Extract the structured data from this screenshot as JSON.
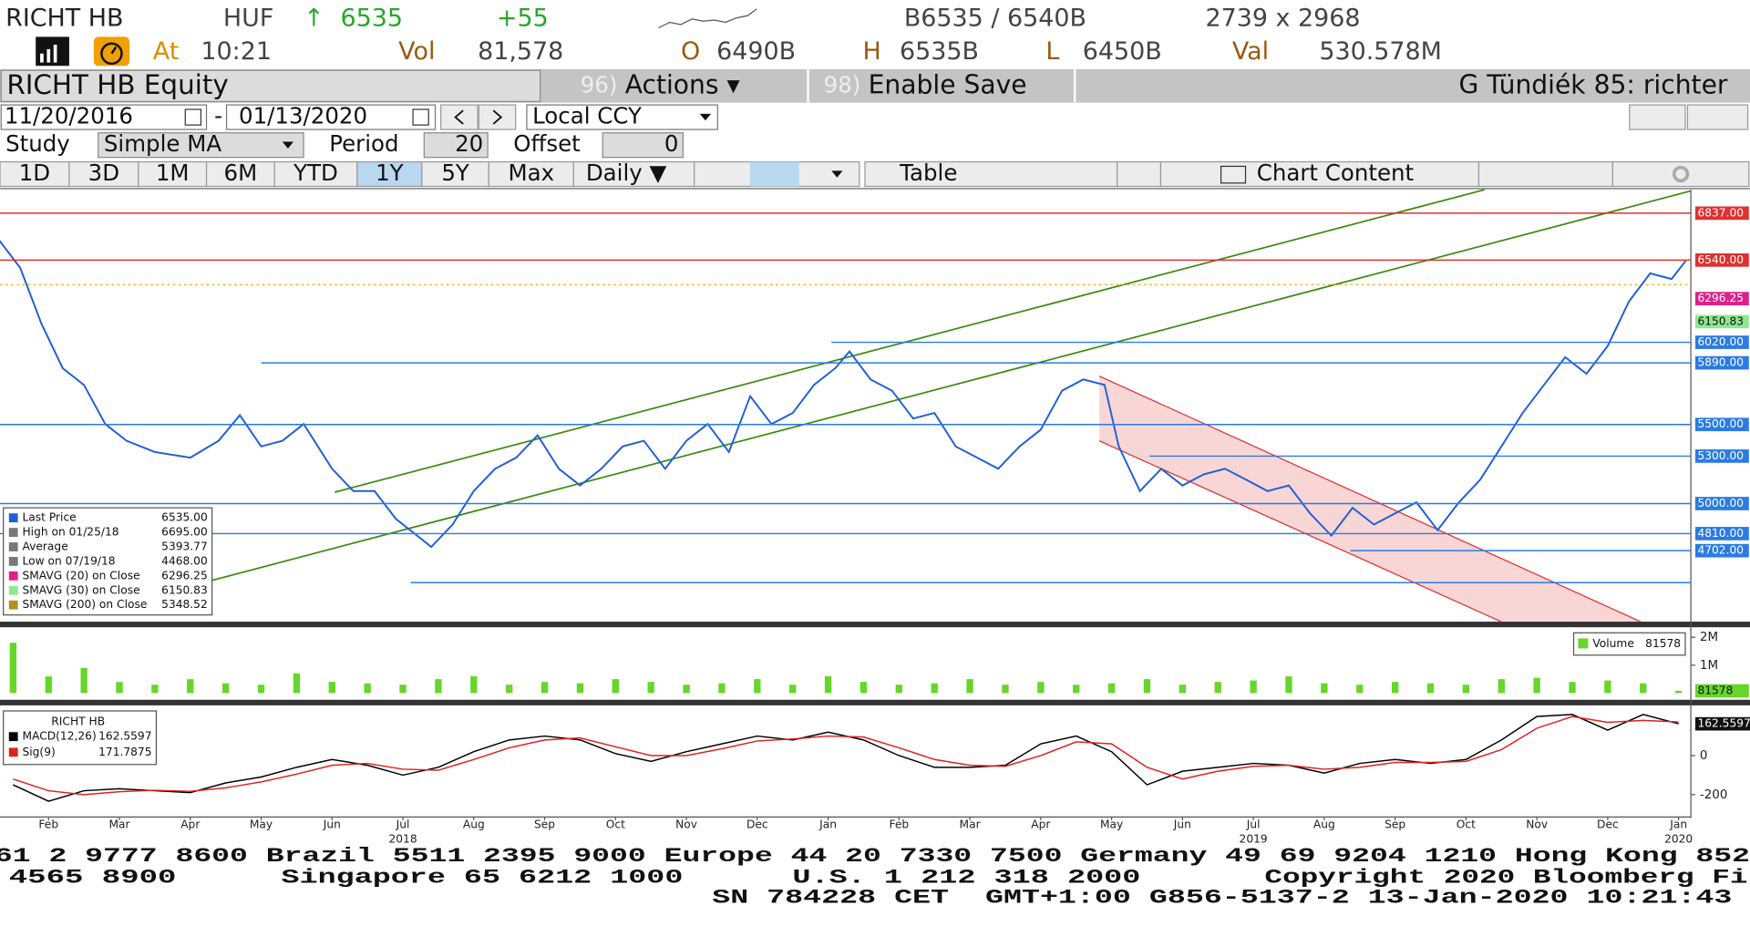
{
  "header": {
    "ticker": "RICHT HB",
    "currency": "HUF",
    "arrow": "↑",
    "last": "6535",
    "change": "+55",
    "bid_ask": "B6535 / 6540B",
    "size": "2739 x 2968",
    "at_label": "At",
    "time": "10:21",
    "vol_label": "Vol",
    "vol": "81,578",
    "open_label": "O",
    "open": "6490B",
    "high_label": "H",
    "high": "6535B",
    "low_label": "L",
    "low": "6450B",
    "val_label": "Val",
    "val": "530.578M"
  },
  "toolbar": {
    "security": "RICHT HB Equity",
    "actions_num": "96)",
    "actions": "Actions ▾",
    "save_num": "98)",
    "save": "Enable Save",
    "user": "G Tündiék 85: richter",
    "start_date": "11/20/2016",
    "dash": "-",
    "end_date": "01/13/2020",
    "currency_mode": "Local CCY",
    "study_label": "Study",
    "study": "Simple MA",
    "period_label": "Period",
    "period": "20",
    "offset_label": "Offset",
    "offset": "0",
    "ranges": [
      "1D",
      "3D",
      "1M",
      "6M",
      "YTD",
      "1Y",
      "5Y",
      "Max"
    ],
    "active_range": 5,
    "interval": "Daily ▼",
    "table": "Table",
    "chart_content": "Chart Content"
  },
  "chart_data": [
    {
      "type": "line",
      "xlim": [
        0.315,
        24.173
      ],
      "ylim": [
        4253,
        6985
      ],
      "x": [
        0.3,
        0.6,
        0.9,
        1.2,
        1.5,
        1.8,
        2.1,
        2.5,
        3.0,
        3.4,
        3.7,
        4.0,
        4.3,
        4.6,
        5.0,
        5.3,
        5.6,
        5.9,
        6.2,
        6.4,
        6.7,
        7.0,
        7.3,
        7.6,
        7.9,
        8.2,
        8.5,
        8.8,
        9.1,
        9.4,
        9.7,
        10.0,
        10.3,
        10.6,
        10.9,
        11.2,
        11.5,
        11.8,
        12.1,
        12.3,
        12.6,
        12.9,
        13.2,
        13.5,
        13.8,
        14.1,
        14.4,
        14.7,
        15.0,
        15.3,
        15.6,
        15.9,
        16.1,
        16.4,
        16.7,
        17.0,
        17.3,
        17.6,
        17.9,
        18.2,
        18.5,
        18.8,
        19.1,
        19.4,
        19.7,
        20.0,
        20.3,
        20.6,
        20.9,
        21.2,
        21.5,
        21.8,
        22.1,
        22.4,
        22.7,
        23.0,
        23.3,
        23.6,
        23.9,
        24.1
      ],
      "series": [
        {
          "color": "#1f5fd6",
          "values": [
            6668,
            6491,
            6138,
            5856,
            5750,
            5503,
            5397,
            5326,
            5291,
            5397,
            5559,
            5361,
            5397,
            5503,
            5220,
            5079,
            5079,
            4903,
            4797,
            4726,
            4867,
            5079,
            5220,
            5291,
            5432,
            5220,
            5114,
            5220,
            5361,
            5397,
            5220,
            5397,
            5503,
            5326,
            5679,
            5503,
            5573,
            5750,
            5856,
            5962,
            5785,
            5714,
            5538,
            5573,
            5361,
            5291,
            5220,
            5361,
            5467,
            5714,
            5785,
            5750,
            5361,
            5079,
            5220,
            5114,
            5185,
            5220,
            5150,
            5079,
            5114,
            4938,
            4797,
            4973,
            4867,
            4938,
            5008,
            4832,
            5008,
            5150,
            5361,
            5573,
            5750,
            5926,
            5821,
            5997,
            6279,
            6456,
            6420,
            6535
          ]
        }
      ],
      "levels": [
        {
          "value": 6837,
          "label": "6837.00",
          "color": "#e03030"
        },
        {
          "value": 6540,
          "label": "6540.00",
          "color": "#e03030"
        },
        {
          "value": 6296.25,
          "label": "6296.25",
          "color": "#e0208a"
        },
        {
          "value": 6150.83,
          "label": "6150.83",
          "color": "#8fe88f"
        },
        {
          "value": 6020,
          "label": "6020.00",
          "color": "#2a7be4"
        },
        {
          "value": 5890,
          "label": "5890.00",
          "color": "#2a7be4"
        },
        {
          "value": 5500,
          "label": "5500.00",
          "color": "#2a7be4"
        },
        {
          "value": 5300,
          "label": "5300.00",
          "color": "#2a7be4"
        },
        {
          "value": 5000,
          "label": "5000.00",
          "color": "#2a7be4"
        },
        {
          "value": 4810,
          "label": "4810.00",
          "color": "#2a7be4"
        },
        {
          "value": 4702,
          "label": "4702.00",
          "color": "#2a7be4"
        },
        {
          "value": 4500,
          "color": "#2a7be4"
        }
      ],
      "legend": [
        {
          "label": "Last Price",
          "value": "6535.00",
          "color": "#1f5fd6"
        },
        {
          "label": "High on 01/25/18",
          "value": "6695.00",
          "color": "#777777"
        },
        {
          "label": "Average",
          "value": "5393.77",
          "color": "#777777"
        },
        {
          "label": "Low on 07/19/18",
          "value": "4468.00",
          "color": "#777777"
        },
        {
          "label": "SMAVG (20)  on Close",
          "value": "6296.25",
          "color": "#e0208a"
        },
        {
          "label": "SMAVG (30)  on Close",
          "value": "6150.83",
          "color": "#8fe88f"
        },
        {
          "label": "SMAVG (200)  on Close",
          "value": "5348.52",
          "color": "#b09020"
        }
      ]
    },
    {
      "type": "bar",
      "xlim": [
        0.315,
        24.173
      ],
      "ylim": [
        0,
        2280000
      ],
      "yticks": [
        {
          "value": 2000000,
          "label": "2M"
        },
        {
          "value": 1000000,
          "label": "1M"
        }
      ],
      "x": [
        0.5,
        1,
        1.5,
        2,
        2.5,
        3,
        3.5,
        4,
        4.5,
        5,
        5.5,
        6,
        6.5,
        7,
        7.5,
        8,
        8.5,
        9,
        9.5,
        10,
        10.5,
        11,
        11.5,
        12,
        12.5,
        13,
        13.5,
        14,
        14.5,
        15,
        15.5,
        16,
        16.5,
        17,
        17.5,
        18,
        18.5,
        19,
        19.5,
        20,
        20.5,
        21,
        21.5,
        22,
        22.5,
        23,
        23.5,
        24
      ],
      "series": [
        {
          "name": "Volume",
          "color": "#66d62a",
          "last_value_label": "81578",
          "values": [
            1800000,
            600000,
            900000,
            400000,
            300000,
            500000,
            350000,
            300000,
            700000,
            400000,
            350000,
            300000,
            500000,
            600000,
            300000,
            400000,
            350000,
            500000,
            400000,
            300000,
            350000,
            500000,
            300000,
            600000,
            400000,
            300000,
            350000,
            500000,
            300000,
            400000,
            300000,
            350000,
            500000,
            300000,
            400000,
            450000,
            600000,
            350000,
            300000,
            400000,
            350000,
            300000,
            500000,
            550000,
            400000,
            450000,
            350000,
            81578
          ]
        }
      ]
    },
    {
      "type": "line",
      "title": "RICHT HB",
      "xlim": [
        0.315,
        24.173
      ],
      "ylim": [
        -303,
        240
      ],
      "yticks": [
        0,
        -200
      ],
      "x": [
        0.5,
        1,
        1.5,
        2,
        2.5,
        3,
        3.5,
        4,
        4.5,
        5,
        5.5,
        6,
        6.5,
        7,
        7.5,
        8,
        8.5,
        9,
        9.5,
        10,
        10.5,
        11,
        11.5,
        12,
        12.5,
        13,
        13.5,
        14,
        14.5,
        15,
        15.5,
        16,
        16.5,
        17,
        17.5,
        18,
        18.5,
        19,
        19.5,
        20,
        20.5,
        21,
        21.5,
        22,
        22.5,
        23,
        23.5,
        24
      ],
      "series": [
        {
          "name": "MACD(12,26)",
          "color": "#000000",
          "last_value_label": "162.5597",
          "values": [
            -150,
            -234,
            -180,
            -170,
            -180,
            -190,
            -140,
            -110,
            -60,
            -20,
            -50,
            -100,
            -60,
            20,
            80,
            100,
            80,
            10,
            -30,
            20,
            60,
            100,
            80,
            120,
            80,
            0,
            -60,
            -60,
            -50,
            60,
            100,
            20,
            -150,
            -80,
            -60,
            -40,
            -50,
            -90,
            -40,
            -20,
            -40,
            -20,
            80,
            200,
            210,
            130,
            210,
            162.5597
          ]
        },
        {
          "name": "Sig(9)",
          "color": "#e02020",
          "last_value_label": "171.7875",
          "values": [
            -120,
            -180,
            -200,
            -185,
            -178,
            -183,
            -165,
            -135,
            -95,
            -50,
            -40,
            -70,
            -75,
            -20,
            40,
            80,
            90,
            45,
            0,
            0,
            35,
            75,
            85,
            100,
            95,
            40,
            -20,
            -50,
            -55,
            0,
            70,
            60,
            -60,
            -120,
            -80,
            -55,
            -50,
            -70,
            -60,
            -35,
            -35,
            -30,
            30,
            140,
            200,
            170,
            180,
            171.7875
          ]
        }
      ],
      "xticks": [
        {
          "value": 1,
          "label": "Feb"
        },
        {
          "value": 2,
          "label": "Mar"
        },
        {
          "value": 3,
          "label": "Apr"
        },
        {
          "value": 4,
          "label": "May"
        },
        {
          "value": 5,
          "label": "Jun"
        },
        {
          "value": 6,
          "label": "Jul"
        },
        {
          "value": 7,
          "label": "Aug"
        },
        {
          "value": 8,
          "label": "Sep"
        },
        {
          "value": 9,
          "label": "Oct"
        },
        {
          "value": 10,
          "label": "Nov"
        },
        {
          "value": 11,
          "label": "Dec"
        },
        {
          "value": 12,
          "label": "Jan"
        },
        {
          "value": 13,
          "label": "Feb"
        },
        {
          "value": 14,
          "label": "Mar"
        },
        {
          "value": 15,
          "label": "Apr"
        },
        {
          "value": 16,
          "label": "May"
        },
        {
          "value": 17,
          "label": "Jun"
        },
        {
          "value": 18,
          "label": "Jul"
        },
        {
          "value": 19,
          "label": "Aug"
        },
        {
          "value": 20,
          "label": "Sep"
        },
        {
          "value": 21,
          "label": "Oct"
        },
        {
          "value": 22,
          "label": "Nov"
        },
        {
          "value": 23,
          "label": "Dec"
        },
        {
          "value": 24,
          "label": "Jan"
        }
      ],
      "year_labels": [
        {
          "value": 6,
          "label": "2018"
        },
        {
          "value": 18,
          "label": "2019"
        },
        {
          "value": 24,
          "label": "2020"
        }
      ]
    }
  ],
  "footer": {
    "line1": "61 2 9777 8600 Brazil 5511 2395 9000 Europe 44 20 7330 7500 Germany 49 69 9204 1210 Hong Kong 852",
    "line2": [
      "4565 8900",
      "Singapore 65 6212 1000",
      "U.S. 1 212 318 2000",
      "Copyright 2020 Bloomberg Fi"
    ],
    "line3": "SN 784228 CET  GMT+1:00 G856-5137-2 13-Jan-2020 10:21:43"
  }
}
